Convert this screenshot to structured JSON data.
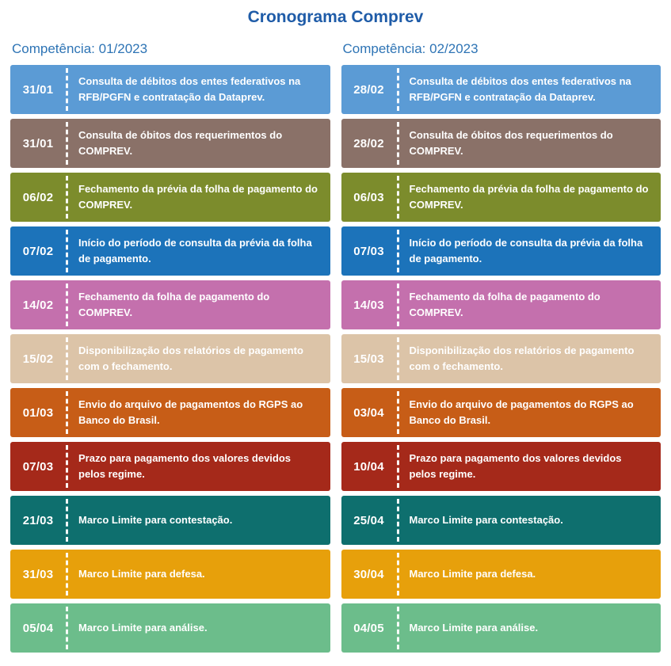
{
  "title": "Cronograma Comprev",
  "columns": [
    {
      "header": "Competência: 01/2023",
      "rows": [
        {
          "date": "31/01",
          "text": "Consulta de débitos dos entes federativos na RFB/PGFN e contratação da Dataprev.",
          "color": "#5b9bd5"
        },
        {
          "date": "31/01",
          "text": "Consulta de óbitos dos requerimentos do COMPREV.",
          "color": "#8a7168"
        },
        {
          "date": "06/02",
          "text": "Fechamento da prévia da folha de pagamento do COMPREV.",
          "color": "#7c8c2c"
        },
        {
          "date": "07/02",
          "text": "Início do período de consulta da prévia da folha de pagamento.",
          "color": "#1c73ba"
        },
        {
          "date": "14/02",
          "text": "Fechamento da folha de pagamento do COMPREV.",
          "color": "#c470ad"
        },
        {
          "date": "15/02",
          "text": "Disponibilização dos relatórios de pagamento com o fechamento.",
          "color": "#dcc4a8"
        },
        {
          "date": "01/03",
          "text": "Envio do arquivo de pagamentos do RGPS ao Banco do Brasil.",
          "color": "#c75d17"
        },
        {
          "date": "07/03",
          "text": "Prazo para pagamento dos valores devidos pelos regime.",
          "color": "#a5291a"
        },
        {
          "date": "21/03",
          "text": "Marco Limite para contestação.",
          "color": "#0e6f6e"
        },
        {
          "date": "31/03",
          "text": "Marco Limite para defesa.",
          "color": "#e7a00b"
        },
        {
          "date": "05/04",
          "text": "Marco Limite para análise.",
          "color": "#6cbd8b"
        }
      ]
    },
    {
      "header": "Competência: 02/2023",
      "rows": [
        {
          "date": "28/02",
          "text": "Consulta de débitos dos entes federativos na RFB/PGFN e contratação da Dataprev.",
          "color": "#5b9bd5"
        },
        {
          "date": "28/02",
          "text": "Consulta de óbitos dos requerimentos do COMPREV.",
          "color": "#8a7168"
        },
        {
          "date": "06/03",
          "text": "Fechamento da prévia da folha de pagamento do COMPREV.",
          "color": "#7c8c2c"
        },
        {
          "date": "07/03",
          "text": "Início do período de consulta da prévia da folha de pagamento.",
          "color": "#1c73ba"
        },
        {
          "date": "14/03",
          "text": "Fechamento da folha de pagamento do COMPREV.",
          "color": "#c470ad"
        },
        {
          "date": "15/03",
          "text": "Disponibilização dos relatórios de pagamento com o fechamento.",
          "color": "#dcc4a8"
        },
        {
          "date": "03/04",
          "text": "Envio do arquivo de pagamentos do RGPS ao Banco do Brasil.",
          "color": "#c75d17"
        },
        {
          "date": "10/04",
          "text": "Prazo para pagamento dos valores devidos pelos regime.",
          "color": "#a5291a"
        },
        {
          "date": "25/04",
          "text": "Marco Limite para contestação.",
          "color": "#0e6f6e"
        },
        {
          "date": "30/04",
          "text": "Marco Limite para defesa.",
          "color": "#e7a00b"
        },
        {
          "date": "04/05",
          "text": "Marco Limite para análise.",
          "color": "#6cbd8b"
        }
      ]
    }
  ]
}
